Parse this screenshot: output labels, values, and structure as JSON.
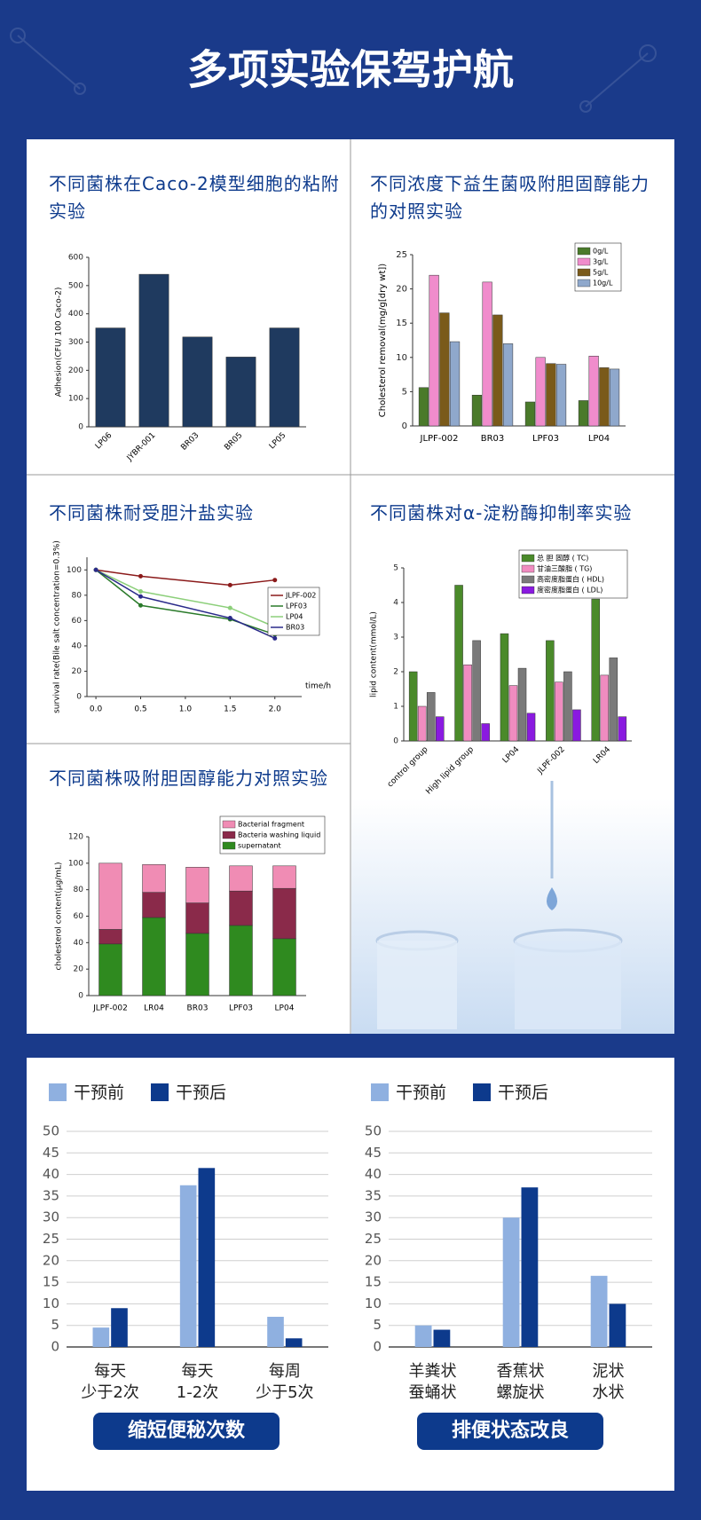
{
  "title": "多项实验保驾护航",
  "chart_data": [
    {
      "type": "bar",
      "title": "不同菌株在Caco-2模型细胞的粘附实验",
      "y_label": "Adhesion(CFU/ 100 Caco-2)",
      "categories": [
        "LP06",
        "JYBR-001",
        "BR03",
        "BR05",
        "LP05"
      ],
      "series": [
        {
          "name": null,
          "color": "#1f3a5f",
          "values": [
            350,
            540,
            318,
            247,
            350
          ]
        }
      ],
      "ylim": [
        0,
        600
      ],
      "yticks": [
        0,
        100,
        200,
        300,
        400,
        500,
        600
      ]
    },
    {
      "type": "bar",
      "title": "不同浓度下益生菌吸附胆固醇能力的对照实验",
      "y_label": "Cholesterol removal(mg/g[dry wt])",
      "categories": [
        "JLPF-002",
        "BR03",
        "LPF03",
        "LP04"
      ],
      "series": [
        {
          "name": "0g/L",
          "color": "#4a7a2a",
          "values": [
            5.6,
            4.5,
            3.5,
            3.7
          ]
        },
        {
          "name": "3g/L",
          "color": "#f08ccc",
          "values": [
            22,
            21,
            10,
            10.2
          ]
        },
        {
          "name": "5g/L",
          "color": "#7a5a1a",
          "values": [
            16.5,
            16.2,
            9.1,
            8.5
          ]
        },
        {
          "name": "10g/L",
          "color": "#8fa8cc",
          "values": [
            12.3,
            12,
            9,
            8.3
          ]
        }
      ],
      "ylim": [
        0,
        25
      ],
      "yticks": [
        0,
        5,
        10,
        15,
        20,
        25
      ]
    },
    {
      "type": "line",
      "title": "不同菌株耐受胆汁盐实验",
      "y_label": "survival rate(Bile salt concentration=0.3%)",
      "x_label": "time/h",
      "x": [
        0,
        0.5,
        1.5,
        2
      ],
      "xlim": [
        -0.1,
        2.3
      ],
      "xticks": [
        {
          "value": 0,
          "label": "0.0"
        },
        {
          "value": 0.5,
          "label": "0.5"
        },
        {
          "value": 1,
          "label": "1.0"
        },
        {
          "value": 1.5,
          "label": "1.5"
        },
        {
          "value": 2,
          "label": "2.0"
        }
      ],
      "series": [
        {
          "name": "JLPF-002",
          "color": "#8b1a1a",
          "values": [
            100,
            95,
            88,
            92
          ]
        },
        {
          "name": "LPF03",
          "color": "#2a7a2a",
          "values": [
            100,
            72,
            61,
            49
          ]
        },
        {
          "name": "LP04",
          "color": "#8ccf7a",
          "values": [
            100,
            83,
            70,
            55
          ]
        },
        {
          "name": "BR03",
          "color": "#2a2a8a",
          "values": [
            100,
            79,
            62,
            46
          ]
        }
      ],
      "ylim": [
        0,
        110
      ],
      "yticks": [
        0,
        20,
        40,
        60,
        80,
        100
      ]
    },
    {
      "type": "bar",
      "stacked": true,
      "title": "不同菌株吸附胆固醇能力对照实验",
      "y_label": "cholesterol content(μg/mL)",
      "categories": [
        "JLPF-002",
        "LR04",
        "BR03",
        "LPF03",
        "LP04"
      ],
      "series": [
        {
          "name": "supernatant",
          "color": "#2f8a1f",
          "values": [
            39,
            59,
            47,
            53,
            43
          ]
        },
        {
          "name": "Bacteria washing liquid",
          "color": "#8a2a4a",
          "values": [
            11,
            19,
            23,
            26,
            38
          ]
        },
        {
          "name": "Bacterial fragment",
          "color": "#f08cb4",
          "values": [
            50,
            21,
            27,
            19,
            17
          ]
        }
      ],
      "ylim": [
        0,
        120
      ],
      "yticks": [
        0,
        20,
        40,
        60,
        80,
        100,
        120
      ]
    },
    {
      "type": "bar",
      "title": "不同菌株对α-淀粉酶抑制率实验",
      "y_label": "lipid content(mmol/L)",
      "categories": [
        "control group",
        "High lipid group",
        "LP04",
        "JLPF-002",
        "LR04"
      ],
      "series": [
        {
          "name": "总 胆 固醇 ( TC)",
          "color": "#4a8a2a",
          "values": [
            2,
            4.5,
            3.1,
            2.9,
            4.1
          ]
        },
        {
          "name": "甘油三酸脂 ( TG)",
          "color": "#f08cc0",
          "values": [
            1,
            2.2,
            1.6,
            1.7,
            1.9
          ]
        },
        {
          "name": "高密度脂蛋白 ( HDL)",
          "color": "#7a7a7a",
          "values": [
            1.4,
            2.9,
            2.1,
            2,
            2.4
          ]
        },
        {
          "name": "度密度脂蛋白 ( LDL)",
          "color": "#8a1ae0",
          "values": [
            0.7,
            0.5,
            0.8,
            0.9,
            0.7
          ]
        }
      ],
      "ylim": [
        0,
        5
      ],
      "yticks": [
        0,
        1,
        2,
        3,
        4,
        5
      ]
    },
    {
      "type": "bar",
      "title": "缩短便秘次数",
      "categories": [
        "每天\n少于2次",
        "每天\n1-2次",
        "每周\n少于5次"
      ],
      "series": [
        {
          "name": "干预前",
          "color": "#8fb0e0",
          "values": [
            4.5,
            37.5,
            7
          ]
        },
        {
          "name": "干预后",
          "color": "#0d3a8c",
          "values": [
            9,
            41.5,
            2
          ]
        }
      ],
      "ylim": [
        0,
        50
      ],
      "yticks": [
        0,
        5,
        10,
        15,
        20,
        25,
        30,
        35,
        40,
        45,
        50
      ],
      "grid": true
    },
    {
      "type": "bar",
      "title": "排便状态改良",
      "categories": [
        "羊粪状\n蚕蛹状",
        "香蕉状\n螺旋状",
        "泥状\n水状"
      ],
      "series": [
        {
          "name": "干预前",
          "color": "#8fb0e0",
          "values": [
            5,
            30,
            16.5
          ]
        },
        {
          "name": "干预后",
          "color": "#0d3a8c",
          "values": [
            4,
            37,
            10
          ]
        }
      ],
      "ylim": [
        0,
        50
      ],
      "yticks": [
        0,
        5,
        10,
        15,
        20,
        25,
        30,
        35,
        40,
        45,
        50
      ],
      "grid": true
    }
  ]
}
